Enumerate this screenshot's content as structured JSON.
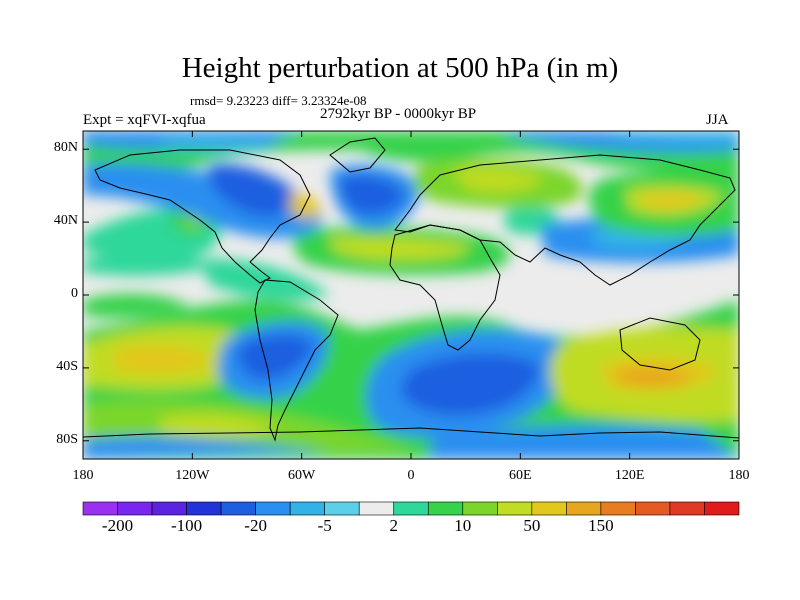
{
  "title": "Height perturbation at 500 hPa (in m)",
  "stats": "rmsd= 9.23223 diff= 3.23324e-08",
  "experiment": "Expt = xqFVI-xqfua",
  "period": "2792kyr BP - 0000kyr BP",
  "season": "JJA",
  "map": {
    "lon_range": [
      -180,
      180
    ],
    "lat_range": [
      -90,
      90
    ],
    "y_ticks": [
      "80N",
      "40N",
      "0",
      "40S",
      "80S"
    ],
    "y_tick_lats": [
      80,
      40,
      0,
      -40,
      -80
    ],
    "x_ticks": [
      "180",
      "120W",
      "60W",
      "0",
      "60E",
      "120E",
      "180"
    ],
    "x_tick_lons": [
      -180,
      -120,
      -60,
      0,
      60,
      120,
      180
    ]
  },
  "colorbar": {
    "colors": [
      "#9b30f0",
      "#7a26f0",
      "#5a24e0",
      "#2233d8",
      "#1e5ee0",
      "#2a8ff0",
      "#33b2e8",
      "#5bd0e8",
      "#ececec",
      "#2ed79a",
      "#35d24a",
      "#7ad62c",
      "#c0dc23",
      "#e2c81c",
      "#e8a51e",
      "#e87c21",
      "#e45a22",
      "#e03a22",
      "#e01b1b"
    ],
    "labels": [
      "-200",
      "-100",
      "-20",
      "-5",
      "2",
      "10",
      "50",
      "150"
    ],
    "label_boundaries": [
      1,
      3,
      5,
      7,
      9,
      11,
      13,
      15
    ]
  }
}
